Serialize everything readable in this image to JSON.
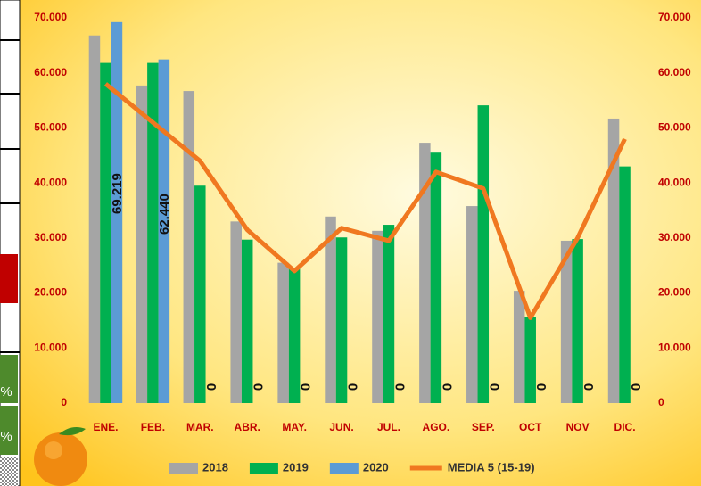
{
  "side_table": {
    "cells": [
      "%",
      "%"
    ]
  },
  "chart_data": {
    "type": "bar",
    "categories": [
      "ENE.",
      "FEB.",
      "MAR.",
      "ABR.",
      "MAY.",
      "JUN.",
      "JUL.",
      "AGO.",
      "SEP.",
      "OCT",
      "NOV",
      "DIC."
    ],
    "series": [
      {
        "name": "2018",
        "type": "bar",
        "color": "#a5a5a5",
        "values": [
          66800,
          57700,
          56700,
          33000,
          25500,
          33900,
          31300,
          47300,
          35800,
          20400,
          29500,
          51700
        ]
      },
      {
        "name": "2019",
        "type": "bar",
        "color": "#00b050",
        "values": [
          61800,
          61800,
          39500,
          29700,
          24600,
          30100,
          32400,
          45500,
          54100,
          15700,
          29800,
          43000
        ]
      },
      {
        "name": "2020",
        "type": "bar",
        "color": "#5b9bd5",
        "values": [
          69219,
          62440,
          0,
          0,
          0,
          0,
          0,
          0,
          0,
          0,
          0,
          0
        ],
        "value_labels": [
          "69.219",
          "62.440",
          "0",
          "0",
          "0",
          "0",
          "0",
          "0",
          "0",
          "0",
          "0",
          "0"
        ]
      },
      {
        "name": "MEDIA 5 (15-19)",
        "type": "line",
        "color": "#f07820",
        "values": [
          58000,
          51000,
          44000,
          31500,
          24000,
          31800,
          29500,
          42000,
          39000,
          15500,
          30000,
          48000
        ]
      }
    ],
    "ylim": [
      0,
      70000
    ],
    "yticks": [
      {
        "value": 0,
        "label": "0"
      },
      {
        "value": 10000,
        "label": "10.000"
      },
      {
        "value": 20000,
        "label": "20.000"
      },
      {
        "value": 30000,
        "label": "30.000"
      },
      {
        "value": 40000,
        "label": "40.000"
      },
      {
        "value": 50000,
        "label": "50.000"
      },
      {
        "value": 60000,
        "label": "60.000"
      },
      {
        "value": 70000,
        "label": "70.000"
      }
    ],
    "y2lim": [
      0,
      70000
    ],
    "y2ticks": [
      {
        "value": 0,
        "label": "0"
      },
      {
        "value": 10000,
        "label": "10.000"
      },
      {
        "value": 20000,
        "label": "20.000"
      },
      {
        "value": 30000,
        "label": "30.000"
      },
      {
        "value": 40000,
        "label": "40.000"
      },
      {
        "value": 50000,
        "label": "50.000"
      },
      {
        "value": 60000,
        "label": "60.000"
      },
      {
        "value": 70000,
        "label": "70.000"
      }
    ],
    "legend": "bottom"
  }
}
